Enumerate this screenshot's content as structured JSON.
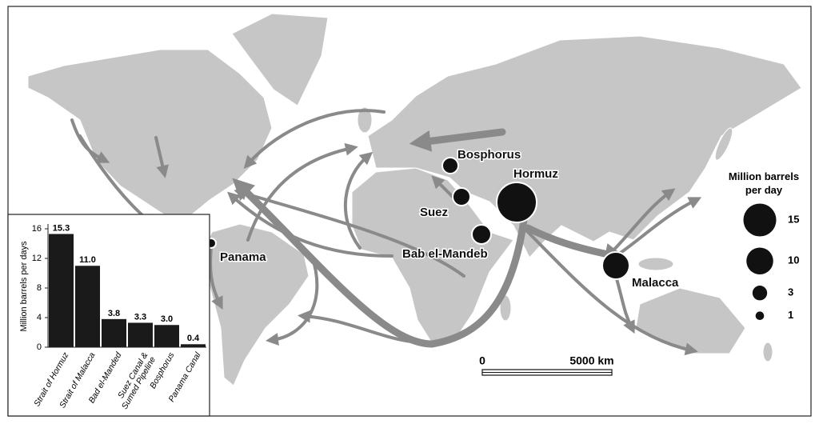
{
  "map": {
    "chokepoints": [
      "Bosphorus",
      "Hormuz",
      "Suez",
      "Bab el-Mandeb",
      "Panama",
      "Malacca"
    ],
    "legend": {
      "title": "Million barrels per day",
      "sizes": [
        15,
        10,
        3,
        1
      ]
    },
    "scale": {
      "start": "0",
      "end": "5000 km"
    }
  },
  "chart_data": {
    "type": "bar",
    "y_label": "Million barrels per days",
    "categories": [
      "Strait of Hormuz",
      "Strait of Malacca",
      "Bad el-Manded",
      "Suez Canal & Sumed Pipeline",
      "Bosphorus",
      "Panama Canal"
    ],
    "values": [
      15.3,
      11,
      3.8,
      3.3,
      3,
      0.4
    ],
    "value_labels": [
      "15.3",
      "11.0",
      "3.8",
      "3.3",
      "3.0",
      "0.4"
    ],
    "color": "#1a1a1a",
    "ylim": [
      0,
      16
    ],
    "yticks": [
      0,
      4,
      8,
      12,
      16
    ]
  }
}
